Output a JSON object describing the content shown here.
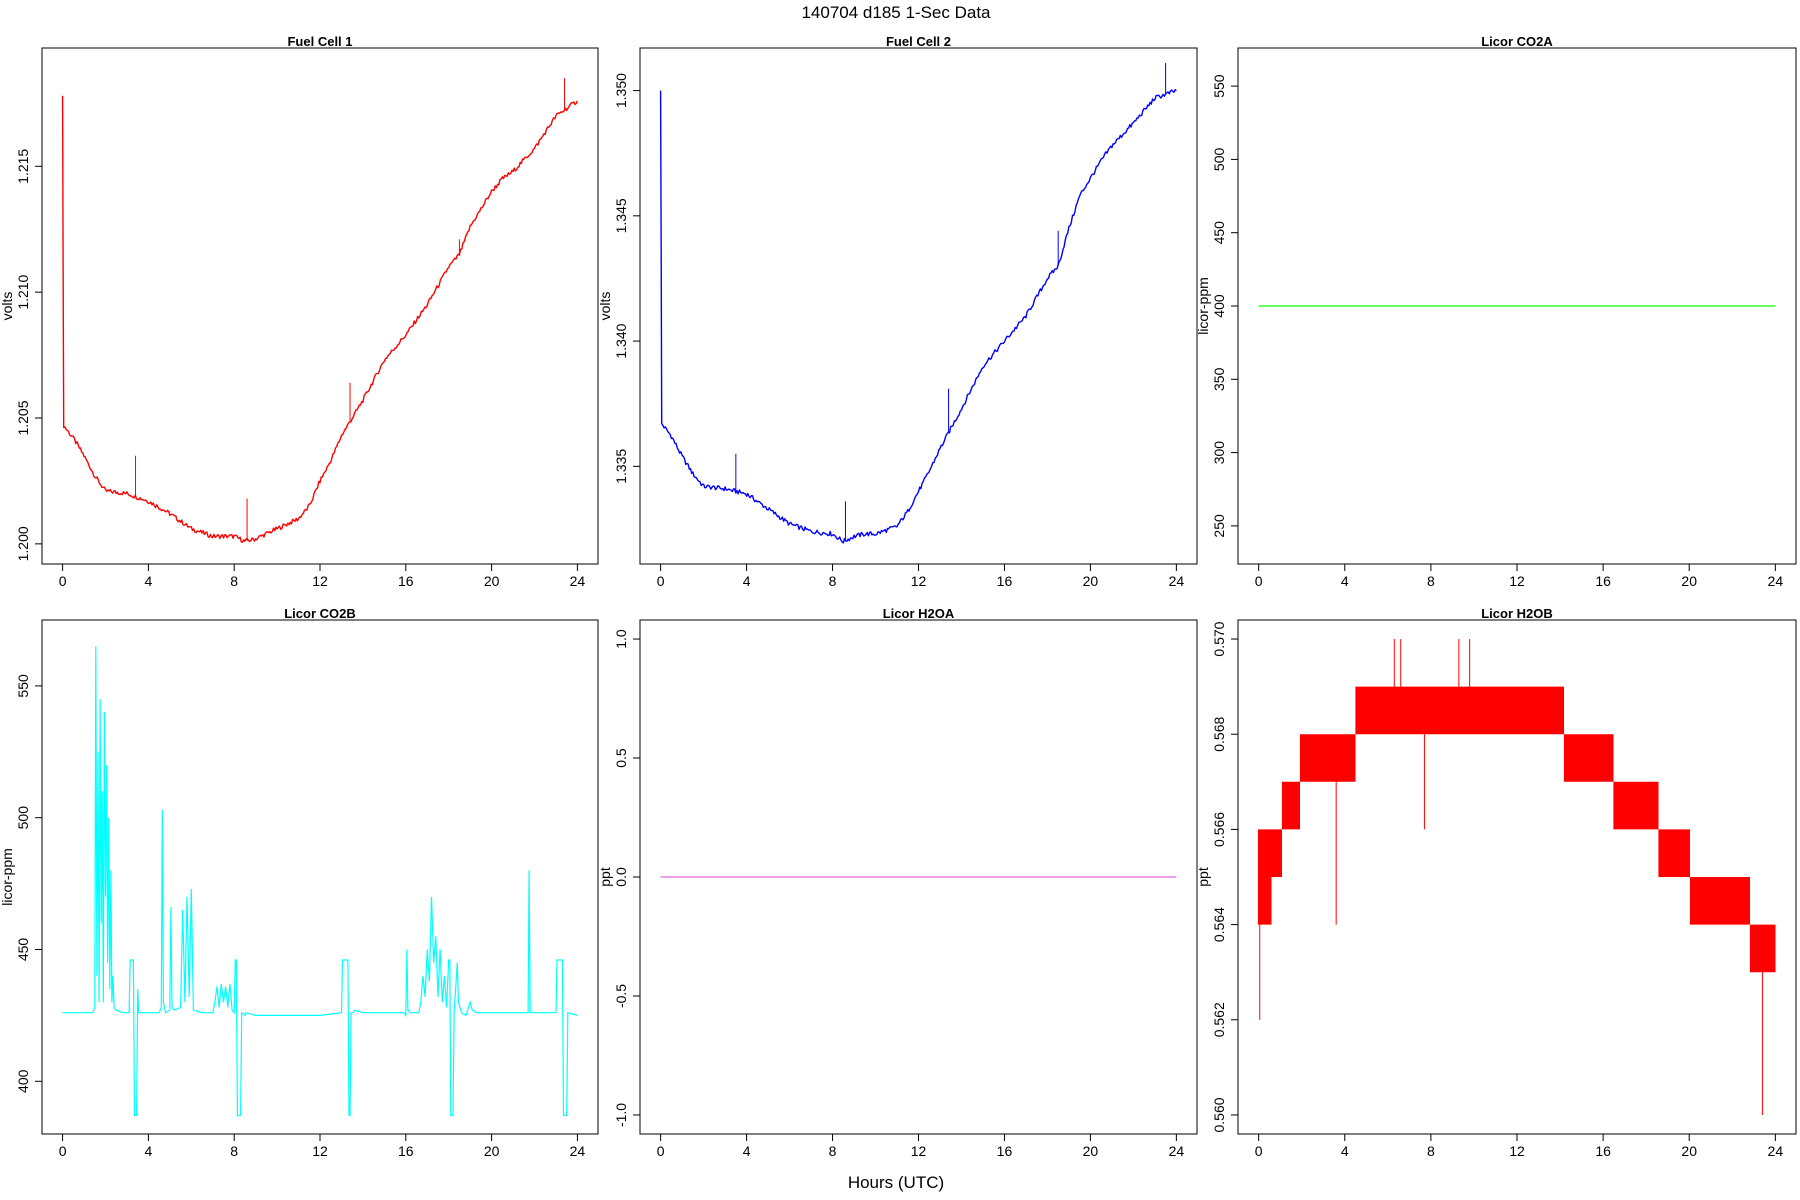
{
  "figure": {
    "title": "140704   d185   1-Sec Data",
    "xlabel": "Hours (UTC)"
  },
  "chart_data": [
    {
      "type": "line",
      "title": "Fuel Cell 1",
      "ylabel": "volts",
      "color": "#ff0000",
      "xlim": [
        -0.96,
        24.96
      ],
      "ylim": [
        1.1992,
        1.2197
      ],
      "xticks": [
        "0",
        "4",
        "8",
        "12",
        "16",
        "20",
        "24"
      ],
      "yticks": [
        "1.200",
        "1.205",
        "1.210",
        "1.215"
      ],
      "x": [
        0,
        0.05,
        0.5,
        1,
        1.5,
        2,
        3,
        4,
        5,
        6,
        7,
        8,
        8.5,
        9,
        9.5,
        10,
        11,
        11.5,
        12,
        12.5,
        13,
        14,
        15,
        16,
        17,
        18,
        18.5,
        19,
        19.5,
        20,
        20.5,
        21,
        22,
        23,
        24
      ],
      "y": [
        1.2178,
        1.2047,
        1.2042,
        1.2035,
        1.2027,
        1.2021,
        1.202,
        1.2017,
        1.2012,
        1.2006,
        1.2003,
        1.2003,
        1.2001,
        1.2002,
        1.2004,
        1.2006,
        1.201,
        1.2015,
        1.2025,
        1.2033,
        1.2043,
        1.2057,
        1.2073,
        1.2083,
        1.2095,
        1.211,
        1.2115,
        1.2126,
        1.2133,
        1.214,
        1.2145,
        1.2148,
        1.2157,
        1.217,
        1.2176
      ],
      "spikes": [
        [
          3.4,
          1.2035
        ],
        [
          8.6,
          1.2018
        ],
        [
          13.4,
          1.2064
        ],
        [
          18.5,
          1.2121
        ],
        [
          23.4,
          1.2185
        ]
      ]
    },
    {
      "type": "line",
      "title": "Fuel Cell 2",
      "ylabel": "volts",
      "color": "#0000ff",
      "xlim": [
        -0.96,
        24.96
      ],
      "ylim": [
        1.3311,
        1.3517
      ],
      "xticks": [
        "0",
        "4",
        "8",
        "12",
        "16",
        "20",
        "24"
      ],
      "yticks": [
        "1.335",
        "1.340",
        "1.345",
        "1.350"
      ],
      "x": [
        0,
        0.05,
        0.5,
        1,
        1.5,
        2,
        3,
        4,
        5,
        6,
        7,
        8,
        8.5,
        9,
        9.5,
        10,
        11,
        11.5,
        12,
        12.5,
        13,
        14,
        15,
        16,
        17,
        18,
        18.5,
        19,
        19.5,
        20,
        20.5,
        21,
        22,
        23,
        24
      ],
      "y": [
        1.35,
        1.3367,
        1.3362,
        1.3354,
        1.3347,
        1.3342,
        1.3341,
        1.3339,
        1.3333,
        1.3327,
        1.3324,
        1.3323,
        1.332,
        1.3322,
        1.3323,
        1.3323,
        1.3326,
        1.3332,
        1.334,
        1.3348,
        1.3357,
        1.3373,
        1.339,
        1.34,
        1.341,
        1.3425,
        1.343,
        1.3445,
        1.3458,
        1.3465,
        1.3472,
        1.3478,
        1.3487,
        1.3497,
        1.35
      ],
      "spikes": [
        [
          3.5,
          1.3355
        ],
        [
          8.6,
          1.3336
        ],
        [
          13.4,
          1.3381
        ],
        [
          18.5,
          1.3444
        ],
        [
          23.5,
          1.3511
        ]
      ]
    },
    {
      "type": "line",
      "title": "Licor CO2A",
      "ylabel": "licor-ppm",
      "color": "#00ff00",
      "xlim": [
        -0.96,
        24.96
      ],
      "ylim": [
        224,
        576
      ],
      "xticks": [
        "0",
        "4",
        "8",
        "12",
        "16",
        "20",
        "24"
      ],
      "yticks": [
        "250",
        "300",
        "350",
        "400",
        "450",
        "500",
        "550"
      ],
      "x": [
        0,
        24
      ],
      "y": [
        400,
        400
      ]
    },
    {
      "type": "line",
      "title": "Licor CO2B",
      "ylabel": "licor-ppm",
      "color": "#00ffff",
      "xlim": [
        -0.96,
        24.96
      ],
      "ylim": [
        380,
        575
      ],
      "xticks": [
        "0",
        "4",
        "8",
        "12",
        "16",
        "20",
        "24"
      ],
      "yticks": [
        "400",
        "450",
        "500",
        "550"
      ],
      "x": [
        0,
        1.4,
        1.5,
        1.55,
        1.6,
        1.65,
        1.7,
        1.75,
        1.8,
        1.85,
        1.9,
        1.95,
        2.0,
        2.05,
        2.1,
        2.15,
        2.2,
        2.25,
        2.3,
        2.35,
        2.4,
        2.5,
        2.8,
        3.1,
        3.15,
        3.3,
        3.35,
        3.4,
        3.45,
        3.5,
        3.55,
        4.5,
        4.6,
        4.65,
        4.7,
        4.8,
        5.0,
        5.05,
        5.1,
        5.2,
        5.5,
        5.6,
        5.7,
        5.8,
        5.9,
        6.0,
        6.1,
        6.5,
        7.0,
        7.1,
        7.2,
        7.3,
        7.4,
        7.5,
        7.6,
        7.7,
        7.8,
        7.9,
        8.0,
        8.05,
        8.1,
        8.15,
        8.3,
        8.35,
        8.5,
        8.55,
        9,
        12,
        13.0,
        13.05,
        13.3,
        13.35,
        13.4,
        13.45,
        13.55,
        13.6,
        14,
        15.9,
        16.0,
        16.05,
        16.1,
        16.2,
        16.6,
        16.7,
        16.8,
        16.9,
        17.0,
        17.1,
        17.2,
        17.3,
        17.4,
        17.5,
        17.6,
        17.7,
        17.8,
        17.9,
        18.0,
        18.05,
        18.1,
        18.2,
        18.25,
        18.4,
        18.45,
        18.6,
        18.8,
        19.0,
        19.1,
        19.3,
        21.7,
        21.75,
        21.8,
        22.5,
        23.0,
        23.05,
        23.3,
        23.35,
        23.5,
        23.55,
        24
      ],
      "y": [
        426,
        426,
        428,
        565,
        440,
        525,
        430,
        545,
        460,
        510,
        430,
        540,
        470,
        520,
        445,
        500,
        435,
        480,
        430,
        440,
        428,
        427,
        426,
        426,
        446,
        446,
        387,
        387,
        387,
        435,
        426,
        426,
        428,
        503,
        430,
        426,
        427,
        466,
        428,
        427,
        428,
        465,
        430,
        470,
        432,
        473,
        427,
        426,
        426,
        430,
        436,
        428,
        437,
        430,
        436,
        428,
        437,
        427,
        426,
        446,
        446,
        387,
        387,
        426,
        425,
        426,
        425,
        425,
        426,
        446,
        446,
        387,
        387,
        426,
        426,
        427,
        426,
        426,
        425,
        450,
        427,
        426,
        426,
        430,
        440,
        432,
        450,
        438,
        470,
        445,
        455,
        432,
        450,
        430,
        440,
        428,
        446,
        446,
        387,
        387,
        426,
        445,
        430,
        426,
        425,
        430,
        427,
        426,
        426,
        480,
        426,
        426,
        426,
        446,
        446,
        387,
        387,
        426,
        425
      ]
    },
    {
      "type": "line",
      "title": "Licor H2OA",
      "ylabel": "ppt",
      "color": "#dd66dd",
      "xlim": [
        -0.96,
        24.96
      ],
      "ylim": [
        -1.08,
        1.08
      ],
      "xticks": [
        "0",
        "4",
        "8",
        "12",
        "16",
        "20",
        "24"
      ],
      "yticks": [
        "-1.0",
        "-0.5",
        "0.0",
        "0.5",
        "1.0"
      ],
      "x": [
        0,
        24
      ],
      "y": [
        0,
        0
      ]
    },
    {
      "type": "area",
      "title": "Licor H2OB",
      "ylabel": "ppt",
      "color": "#ff0000",
      "xlim": [
        -0.96,
        24.96
      ],
      "ylim": [
        0.5596,
        0.5704
      ],
      "xticks": [
        "0",
        "4",
        "8",
        "12",
        "16",
        "20",
        "24"
      ],
      "yticks": [
        "0.560",
        "0.562",
        "0.564",
        "0.566",
        "0.568",
        "0.570"
      ],
      "x": [
        0,
        0.6,
        1.1,
        1.9,
        3.3,
        4.5,
        6.5,
        12.0,
        14.2,
        16.5,
        18.6,
        20.0,
        22.8,
        24.0
      ],
      "low": [
        0.564,
        0.565,
        0.566,
        0.567,
        0.567,
        0.568,
        0.568,
        0.568,
        0.567,
        0.566,
        0.565,
        0.564,
        0.563,
        0.562
      ],
      "high": [
        0.566,
        0.566,
        0.567,
        0.568,
        0.568,
        0.569,
        0.569,
        0.569,
        0.568,
        0.567,
        0.566,
        0.565,
        0.564,
        0.563
      ],
      "spikes": [
        [
          0.05,
          0.562
        ],
        [
          3.6,
          0.564
        ],
        [
          6.3,
          0.57
        ],
        [
          6.6,
          0.57
        ],
        [
          9.3,
          0.57
        ],
        [
          9.8,
          0.57
        ],
        [
          7.7,
          0.566
        ],
        [
          23.4,
          0.56
        ]
      ]
    }
  ]
}
